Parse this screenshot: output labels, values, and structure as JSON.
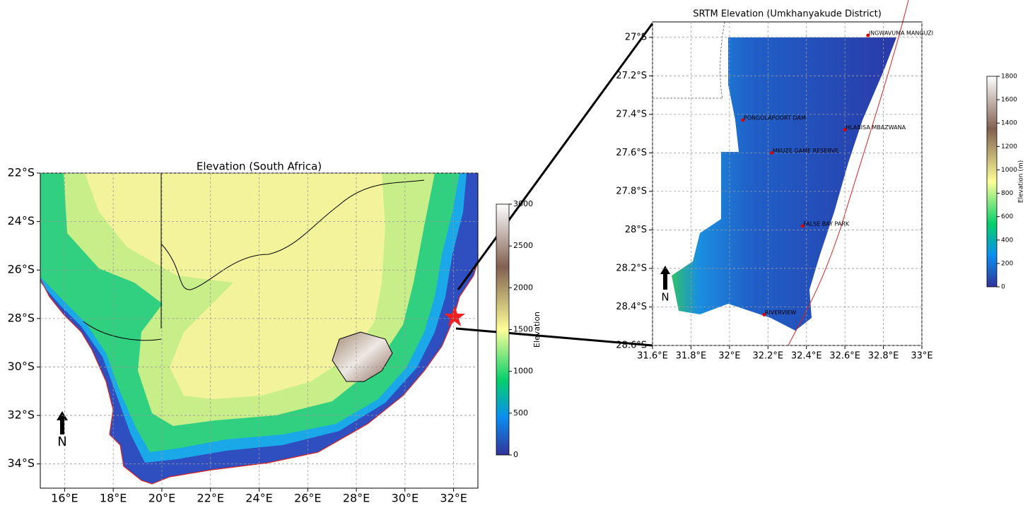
{
  "south_africa_map": {
    "title": "Elevation (South Africa)",
    "xlim": [
      15,
      33
    ],
    "ylim": [
      -35,
      -22
    ],
    "xticks": [
      {
        "value": 16,
        "label": "16°E"
      },
      {
        "value": 18,
        "label": "18°E"
      },
      {
        "value": 20,
        "label": "20°E"
      },
      {
        "value": 22,
        "label": "22°E"
      },
      {
        "value": 24,
        "label": "24°E"
      },
      {
        "value": 26,
        "label": "26°E"
      },
      {
        "value": 28,
        "label": "28°E"
      },
      {
        "value": 30,
        "label": "30°E"
      },
      {
        "value": 32,
        "label": "32°E"
      }
    ],
    "yticks": [
      {
        "value": -22,
        "label": "22°S"
      },
      {
        "value": -24,
        "label": "24°S"
      },
      {
        "value": -26,
        "label": "26°S"
      },
      {
        "value": -28,
        "label": "28°S"
      },
      {
        "value": -30,
        "label": "30°S"
      },
      {
        "value": -32,
        "label": "32°S"
      },
      {
        "value": -34,
        "label": "34°S"
      }
    ],
    "north": "N",
    "colorbar": {
      "label": "Elevation",
      "lim": [
        0,
        3000
      ],
      "ticks": [
        0,
        500,
        1000,
        1500,
        2000,
        2500,
        3000
      ]
    }
  },
  "district_map": {
    "title": "SRTM Elevation (Umkhanyakude District)",
    "xlim": [
      31.6,
      33
    ],
    "ylim": [
      -28.6,
      -26.92
    ],
    "xticks": [
      {
        "value": 31.6,
        "label": "31.6°E"
      },
      {
        "value": 31.8,
        "label": "31.8°E"
      },
      {
        "value": 32,
        "label": "32°E"
      },
      {
        "value": 32.2,
        "label": "32.2°E"
      },
      {
        "value": 32.4,
        "label": "32.4°E"
      },
      {
        "value": 32.6,
        "label": "32.6°E"
      },
      {
        "value": 32.8,
        "label": "32.8°E"
      },
      {
        "value": 33,
        "label": "33°E"
      }
    ],
    "yticks": [
      {
        "value": -27,
        "label": "27°S"
      },
      {
        "value": -27.2,
        "label": "27.2°S"
      },
      {
        "value": -27.4,
        "label": "27.4°S"
      },
      {
        "value": -27.6,
        "label": "27.6°S"
      },
      {
        "value": -27.8,
        "label": "27.8°S"
      },
      {
        "value": -28,
        "label": "28°S"
      },
      {
        "value": -28.2,
        "label": "28.2°S"
      },
      {
        "value": -28.4,
        "label": "28.4°S"
      },
      {
        "value": -28.6,
        "label": "28.6°S"
      }
    ],
    "north": "N",
    "places": [
      {
        "label": "INGWAVUMA MANGUZI",
        "lon": 32.72,
        "lat": -26.99
      },
      {
        "label": "PONGOLAPOORT DAM",
        "lon": 32.07,
        "lat": -27.43
      },
      {
        "label": "HLABISA MBAZWANA",
        "lon": 32.6,
        "lat": -27.48
      },
      {
        "label": "MKUZE GAME RESERVE",
        "lon": 32.22,
        "lat": -27.6
      },
      {
        "label": "FALSE BAY PARK",
        "lon": 32.38,
        "lat": -27.98
      },
      {
        "label": "RIVERVIEW",
        "lon": 32.18,
        "lat": -28.44
      }
    ],
    "colorbar": {
      "label": "Elevation (m)",
      "lim": [
        0,
        1800
      ],
      "ticks": [
        0,
        200,
        400,
        600,
        800,
        1000,
        1200,
        1400,
        1600,
        1800
      ]
    }
  }
}
